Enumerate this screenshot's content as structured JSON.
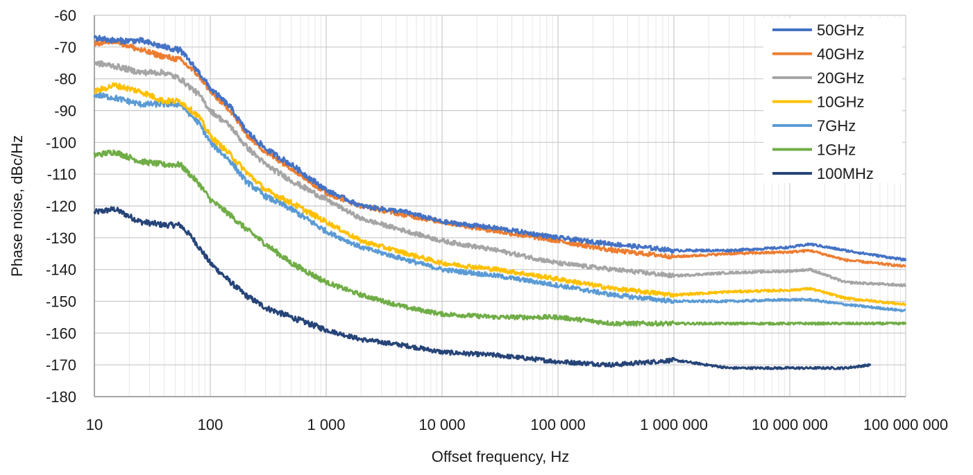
{
  "chart_data": {
    "type": "line",
    "xlabel": "Offset frequency, Hz",
    "ylabel": "Phase noise, dBc/Hz",
    "xscale": "log",
    "xlim": [
      10,
      100000000
    ],
    "ylim": [
      -180,
      -60
    ],
    "grid": true,
    "legend_position": "top-right",
    "x_tick_values": [
      10,
      100,
      1000,
      10000,
      100000,
      1000000,
      10000000,
      100000000
    ],
    "x_tick_labels": [
      "10",
      "100",
      "1 000",
      "10 000",
      "100 000",
      "1 000 000",
      "10 000 000",
      "100 000 000"
    ],
    "y_tick_values": [
      -60,
      -70,
      -80,
      -90,
      -100,
      -110,
      -120,
      -130,
      -140,
      -150,
      -160,
      -170,
      -180
    ],
    "y_tick_labels": [
      "-60",
      "-70",
      "-80",
      "-90",
      "-100",
      "-110",
      "-120",
      "-130",
      "-140",
      "-150",
      "-160",
      "-170",
      "-180"
    ],
    "series": [
      {
        "name": "50GHz",
        "color": "#4472C4",
        "x": [
          10,
          15,
          25,
          40,
          55,
          80,
          100,
          150,
          200,
          300,
          500,
          1000,
          2000,
          5000,
          10000,
          30000,
          100000,
          300000,
          1000000,
          3000000,
          10000000,
          15000000,
          30000000,
          100000000
        ],
        "y": [
          -67,
          -68,
          -68,
          -70,
          -71,
          -78,
          -83,
          -89,
          -96,
          -102,
          -107,
          -115,
          -120,
          -122,
          -125,
          -127,
          -130,
          -132,
          -134,
          -134,
          -133,
          -132,
          -134,
          -137
        ]
      },
      {
        "name": "40GHz",
        "color": "#ED7D31",
        "x": [
          10,
          15,
          25,
          40,
          55,
          80,
          100,
          150,
          200,
          300,
          500,
          1000,
          2000,
          5000,
          10000,
          30000,
          100000,
          300000,
          1000000,
          3000000,
          10000000,
          15000000,
          30000000,
          100000000
        ],
        "y": [
          -69,
          -68,
          -71,
          -73,
          -74,
          -79,
          -84,
          -90,
          -97,
          -103,
          -108,
          -116,
          -120,
          -123,
          -125,
          -128,
          -131,
          -134,
          -136,
          -135,
          -134.5,
          -134,
          -137,
          -139
        ]
      },
      {
        "name": "20GHz",
        "color": "#A5A5A5",
        "x": [
          10,
          15,
          25,
          40,
          55,
          80,
          100,
          150,
          200,
          300,
          500,
          1000,
          2000,
          5000,
          10000,
          30000,
          100000,
          300000,
          1000000,
          3000000,
          10000000,
          15000000,
          30000000,
          100000000
        ],
        "y": [
          -75,
          -76,
          -78,
          -78,
          -80,
          -85,
          -90,
          -95,
          -101,
          -107,
          -112,
          -118,
          -124,
          -128,
          -131,
          -134,
          -138,
          -140,
          -142,
          -141,
          -140.5,
          -140,
          -144,
          -145
        ]
      },
      {
        "name": "10GHz",
        "color": "#FFC000",
        "x": [
          10,
          15,
          25,
          40,
          55,
          80,
          100,
          150,
          200,
          300,
          500,
          1000,
          2000,
          5000,
          10000,
          30000,
          100000,
          300000,
          1000000,
          3000000,
          10000000,
          15000000,
          30000000,
          100000000
        ],
        "y": [
          -84,
          -82,
          -84,
          -87,
          -87,
          -92,
          -98,
          -104,
          -109,
          -115,
          -119,
          -125,
          -131,
          -135,
          -138,
          -140,
          -143,
          -146,
          -148,
          -147,
          -146.5,
          -146,
          -149,
          -151
        ]
      },
      {
        "name": "7GHz",
        "color": "#5B9BD5",
        "x": [
          10,
          15,
          25,
          40,
          55,
          80,
          100,
          150,
          200,
          300,
          500,
          1000,
          2000,
          5000,
          10000,
          30000,
          100000,
          300000,
          1000000,
          3000000,
          10000000,
          15000000,
          30000000,
          100000000
        ],
        "y": [
          -85,
          -86,
          -88,
          -88,
          -88,
          -94,
          -100,
          -106,
          -112,
          -117,
          -121,
          -128,
          -133,
          -137,
          -140,
          -142,
          -145,
          -148,
          -150,
          -150,
          -149.5,
          -149.5,
          -151,
          -153
        ]
      },
      {
        "name": "1GHz",
        "color": "#70AD47",
        "x": [
          10,
          15,
          25,
          40,
          55,
          80,
          100,
          150,
          200,
          300,
          500,
          1000,
          2000,
          5000,
          10000,
          30000,
          100000,
          300000,
          1000000,
          3000000,
          10000000,
          15000000,
          30000000,
          100000000
        ],
        "y": [
          -104,
          -103,
          -106,
          -107,
          -107,
          -113,
          -118,
          -123,
          -127,
          -132,
          -138,
          -144,
          -148,
          -152,
          -154,
          -155,
          -155,
          -157,
          -157,
          -157,
          -157,
          -157,
          -157,
          -157
        ]
      },
      {
        "name": "100MHz",
        "color": "#264478",
        "x": [
          10,
          15,
          25,
          40,
          55,
          70,
          100,
          150,
          200,
          300,
          500,
          1000,
          2000,
          5000,
          10000,
          30000,
          100000,
          300000,
          1000000,
          3000000,
          10000000,
          30000000,
          50000000
        ],
        "y": [
          -122,
          -121,
          -125,
          -126,
          -126,
          -130,
          -138,
          -144,
          -148,
          -152,
          -155,
          -159,
          -162,
          -164,
          -166,
          -167,
          -169,
          -170,
          -168.5,
          -171,
          -171,
          -171,
          -170
        ]
      }
    ]
  }
}
